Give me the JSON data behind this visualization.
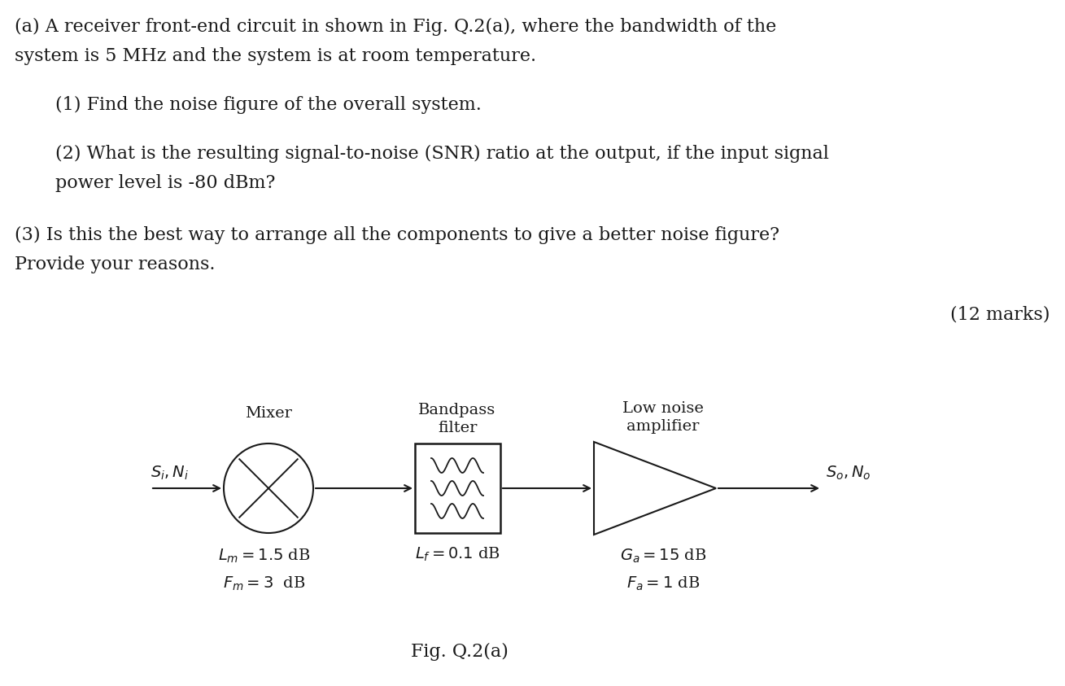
{
  "bg_color": "#ffffff",
  "text_color": "#1a1a1a",
  "line1": "(a) A receiver front-end circuit in shown in Fig. Q.2(a), where the bandwidth of the",
  "line2": "system is 5 MHz and the system is at room temperature.",
  "q1": "(1) Find the noise figure of the overall system.",
  "q2line1": "(2) What is the resulting signal-to-noise (SNR) ratio at the output, if the input signal",
  "q2line2": "power level is -80 dBm?",
  "q3line1": "(3) Is this the best way to arrange all the components to give a better noise figure?",
  "q3line2": "Provide your reasons.",
  "marks": "(12 marks)",
  "fig_caption": "Fig. Q.2(a)",
  "label_mixer": "Mixer",
  "label_bpf_line1": "Bandpass",
  "label_bpf_line2": "filter",
  "label_lna_line1": "Low noise",
  "label_lna_line2": "amplifier",
  "label_input": "$S_i, N_i$",
  "label_output": "$S_o, N_o$",
  "label_lm": "$L_m=1.5$ dB",
  "label_fm": "$F_m=3$  dB",
  "label_lf": "$L_f=0.1$ dB",
  "label_ga": "$G_a=15$ dB",
  "label_fa": "$F_a=1$ dB",
  "font_size_body": 16,
  "font_size_diagram": 14
}
